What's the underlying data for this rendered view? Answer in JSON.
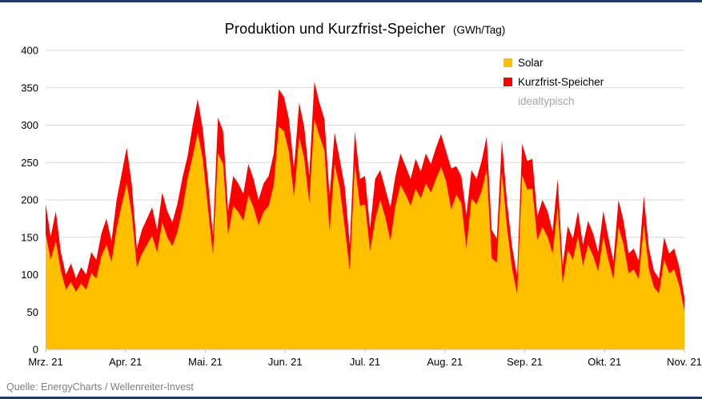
{
  "page": {
    "background": "#FFFFFF",
    "accent_navy": "#1F3864",
    "source_note": "Quelle: EnergyCharts / Wellenreiter-Invest"
  },
  "title": {
    "main": "Produktion und Kurzfrist-Speicher",
    "units": "(GWh/Tag)"
  },
  "legend": {
    "items": [
      {
        "label": "Solar",
        "color": "#FFC000"
      },
      {
        "label": "Kurzfrist-Speicher",
        "color": "#FF0000"
      },
      {
        "label": "idealtypisch",
        "color": "#A6A6A6"
      }
    ]
  },
  "chart_data": {
    "type": "area",
    "stacked": true,
    "title": "Produktion und Kurzfrist-Speicher (GWh/Tag)",
    "ylabel": "",
    "xlabel": "",
    "ylim": [
      0,
      400
    ],
    "y_tick_step": 50,
    "grid": "horizontal",
    "grid_color": "#D9D9D9",
    "legend_position": "top-right-inside",
    "x_tick_labels": [
      "Mrz. 21",
      "Apr. 21",
      "Mai. 21",
      "Jun. 21",
      "Jul. 21",
      "Aug. 21",
      "Sep. 21",
      "Okt. 21",
      "Nov. 21"
    ],
    "series": [
      {
        "name": "Solar",
        "color": "#FFC000",
        "values": [
          155,
          120,
          145,
          105,
          80,
          90,
          77,
          88,
          80,
          102,
          95,
          125,
          140,
          117,
          162,
          193,
          222,
          180,
          110,
          128,
          140,
          152,
          130,
          170,
          150,
          138,
          157,
          188,
          228,
          258,
          290,
          255,
          190,
          126,
          262,
          248,
          153,
          192,
          184,
          172,
          206,
          190,
          166,
          184,
          192,
          220,
          298,
          292,
          264,
          204,
          284,
          256,
          196,
          308,
          286,
          266,
          157,
          248,
          217,
          163,
          105,
          248,
          192,
          194,
          132,
          173,
          200,
          177,
          145,
          192,
          220,
          207,
          192,
          215,
          202,
          222,
          210,
          228,
          244,
          225,
          187,
          207,
          196,
          135,
          202,
          194,
          212,
          241,
          122,
          116,
          238,
          164,
          108,
          74,
          233,
          214,
          215,
          146,
          164,
          151,
          128,
          190,
          88,
          133,
          120,
          151,
          112,
          140,
          125,
          104,
          151,
          120,
          94,
          164,
          140,
          102,
          107,
          94,
          167,
          107,
          83,
          75,
          120,
          102,
          107,
          85,
          52
        ]
      },
      {
        "name": "Kurzfrist-Speicher",
        "color": "#FF0000",
        "values": [
          40,
          30,
          40,
          25,
          20,
          25,
          18,
          22,
          20,
          28,
          25,
          30,
          35,
          28,
          38,
          42,
          48,
          40,
          25,
          32,
          35,
          38,
          30,
          40,
          35,
          32,
          38,
          42,
          30,
          42,
          45,
          40,
          38,
          26,
          48,
          44,
          32,
          40,
          38,
          36,
          42,
          38,
          34,
          38,
          40,
          42,
          50,
          46,
          44,
          38,
          46,
          42,
          36,
          50,
          44,
          42,
          48,
          42,
          38,
          55,
          35,
          44,
          36,
          38,
          30,
          55,
          40,
          38,
          45,
          40,
          42,
          38,
          36,
          40,
          36,
          40,
          38,
          42,
          44,
          40,
          55,
          38,
          36,
          45,
          38,
          34,
          40,
          44,
          38,
          32,
          42,
          34,
          30,
          24,
          42,
          38,
          40,
          32,
          36,
          34,
          30,
          38,
          24,
          32,
          28,
          34,
          28,
          32,
          30,
          26,
          34,
          30,
          24,
          36,
          32,
          26,
          28,
          24,
          38,
          28,
          22,
          20,
          30,
          26,
          28,
          25,
          18
        ]
      }
    ]
  }
}
